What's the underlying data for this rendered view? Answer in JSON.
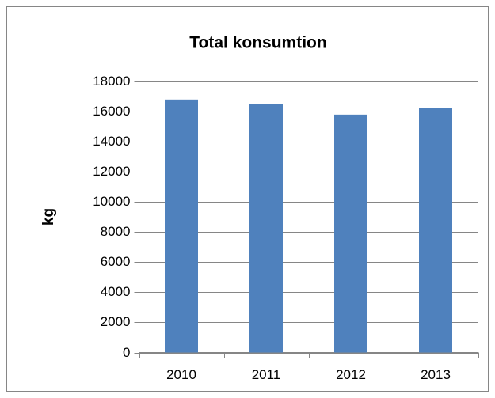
{
  "chart_data": {
    "type": "bar",
    "title": "Total konsumtion",
    "y_label": "kg",
    "categories": [
      "2010",
      "2011",
      "2012",
      "2013"
    ],
    "values": [
      16800,
      16500,
      15800,
      16250
    ],
    "color": "#4f81bd",
    "ylim": [
      0,
      18000
    ],
    "yticks": [
      0,
      2000,
      4000,
      6000,
      8000,
      10000,
      12000,
      14000,
      16000,
      18000
    ],
    "grid": true
  }
}
